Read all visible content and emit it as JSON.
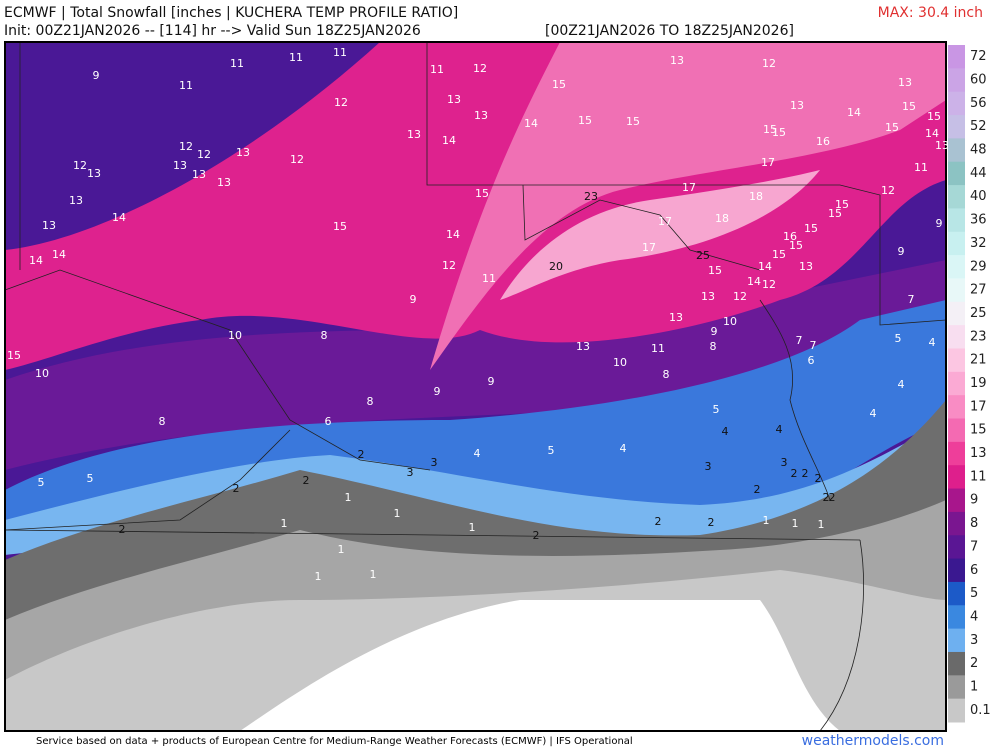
{
  "header": {
    "title": "ECMWF | Total Snowfall [inches | KUCHERA TEMP PROFILE RATIO]",
    "init": "Init: 00Z21JAN2026 -- [114] hr --> Valid Sun 18Z25JAN2026",
    "range": "[00Z21JAN2026 TO 18Z25JAN2026]",
    "max": "MAX: 30.4 inch"
  },
  "legend": [
    {
      "label": 72,
      "color": "#c996e4"
    },
    {
      "label": 60,
      "color": "#cba4e6"
    },
    {
      "label": 56,
      "color": "#ccb2e8"
    },
    {
      "label": 52,
      "color": "#c6bfe6"
    },
    {
      "label": 48,
      "color": "#a9c2d2"
    },
    {
      "label": 44,
      "color": "#8cc3c3"
    },
    {
      "label": 40,
      "color": "#a6d8d6"
    },
    {
      "label": 36,
      "color": "#b8e6e6"
    },
    {
      "label": 32,
      "color": "#c8f0f0"
    },
    {
      "label": 29,
      "color": "#daf6f6"
    },
    {
      "label": 27,
      "color": "#e8f8f8"
    },
    {
      "label": 25,
      "color": "#f4f0f6"
    },
    {
      "label": 23,
      "color": "#f8def0"
    },
    {
      "label": 21,
      "color": "#fcc6e2"
    },
    {
      "label": 19,
      "color": "#fbaad4"
    },
    {
      "label": 17,
      "color": "#f98cc4"
    },
    {
      "label": 15,
      "color": "#f46ab2"
    },
    {
      "label": 13,
      "color": "#ee3e9a"
    },
    {
      "label": 11,
      "color": "#de1f8c"
    },
    {
      "label": 9,
      "color": "#a8168c"
    },
    {
      "label": 8,
      "color": "#7a1690"
    },
    {
      "label": 7,
      "color": "#5a1694"
    },
    {
      "label": 6,
      "color": "#3a1890"
    },
    {
      "label": 5,
      "color": "#1c5ac8"
    },
    {
      "label": 4,
      "color": "#3a88e0"
    },
    {
      "label": 3,
      "color": "#6eb0f0"
    },
    {
      "label": 2,
      "color": "#6a6a6a"
    },
    {
      "label": 1,
      "color": "#9a9a9a"
    },
    {
      "label": 0.1,
      "color": "#c8c8c8"
    }
  ],
  "map_labels": [
    9,
    11,
    11,
    11,
    11,
    12,
    12,
    12,
    13,
    12,
    12,
    13,
    13,
    13,
    13,
    13,
    14,
    13,
    14,
    14,
    15,
    15,
    10,
    10,
    8,
    8,
    6,
    8,
    9,
    9,
    9,
    12,
    11,
    14,
    15,
    14,
    13,
    11,
    12,
    13,
    13,
    15,
    14,
    15,
    15,
    13,
    12,
    13,
    15,
    13,
    14,
    15,
    15,
    14,
    13,
    15,
    15,
    16,
    17,
    11,
    12,
    17,
    18,
    17,
    18,
    17,
    25,
    23,
    20,
    15,
    15,
    15,
    16,
    15,
    15,
    14,
    13,
    14,
    12,
    12,
    15,
    13,
    13,
    10,
    9,
    8,
    13,
    10,
    11,
    8,
    7,
    7,
    6,
    9,
    9,
    7,
    5,
    4,
    4,
    4,
    5,
    4,
    4,
    4,
    5,
    4,
    3,
    3,
    2,
    3,
    3,
    2,
    2,
    2,
    2,
    2,
    2,
    5,
    5,
    2,
    2,
    1,
    1,
    1,
    2,
    2,
    2,
    1,
    1,
    1,
    1,
    2,
    1,
    1,
    1
  ],
  "footer": {
    "credit": "Service based on data + products of European Centre for Medium-Range Weather Forecasts (ECMWF) | IFS Operational",
    "site": "weathermodels.com"
  }
}
